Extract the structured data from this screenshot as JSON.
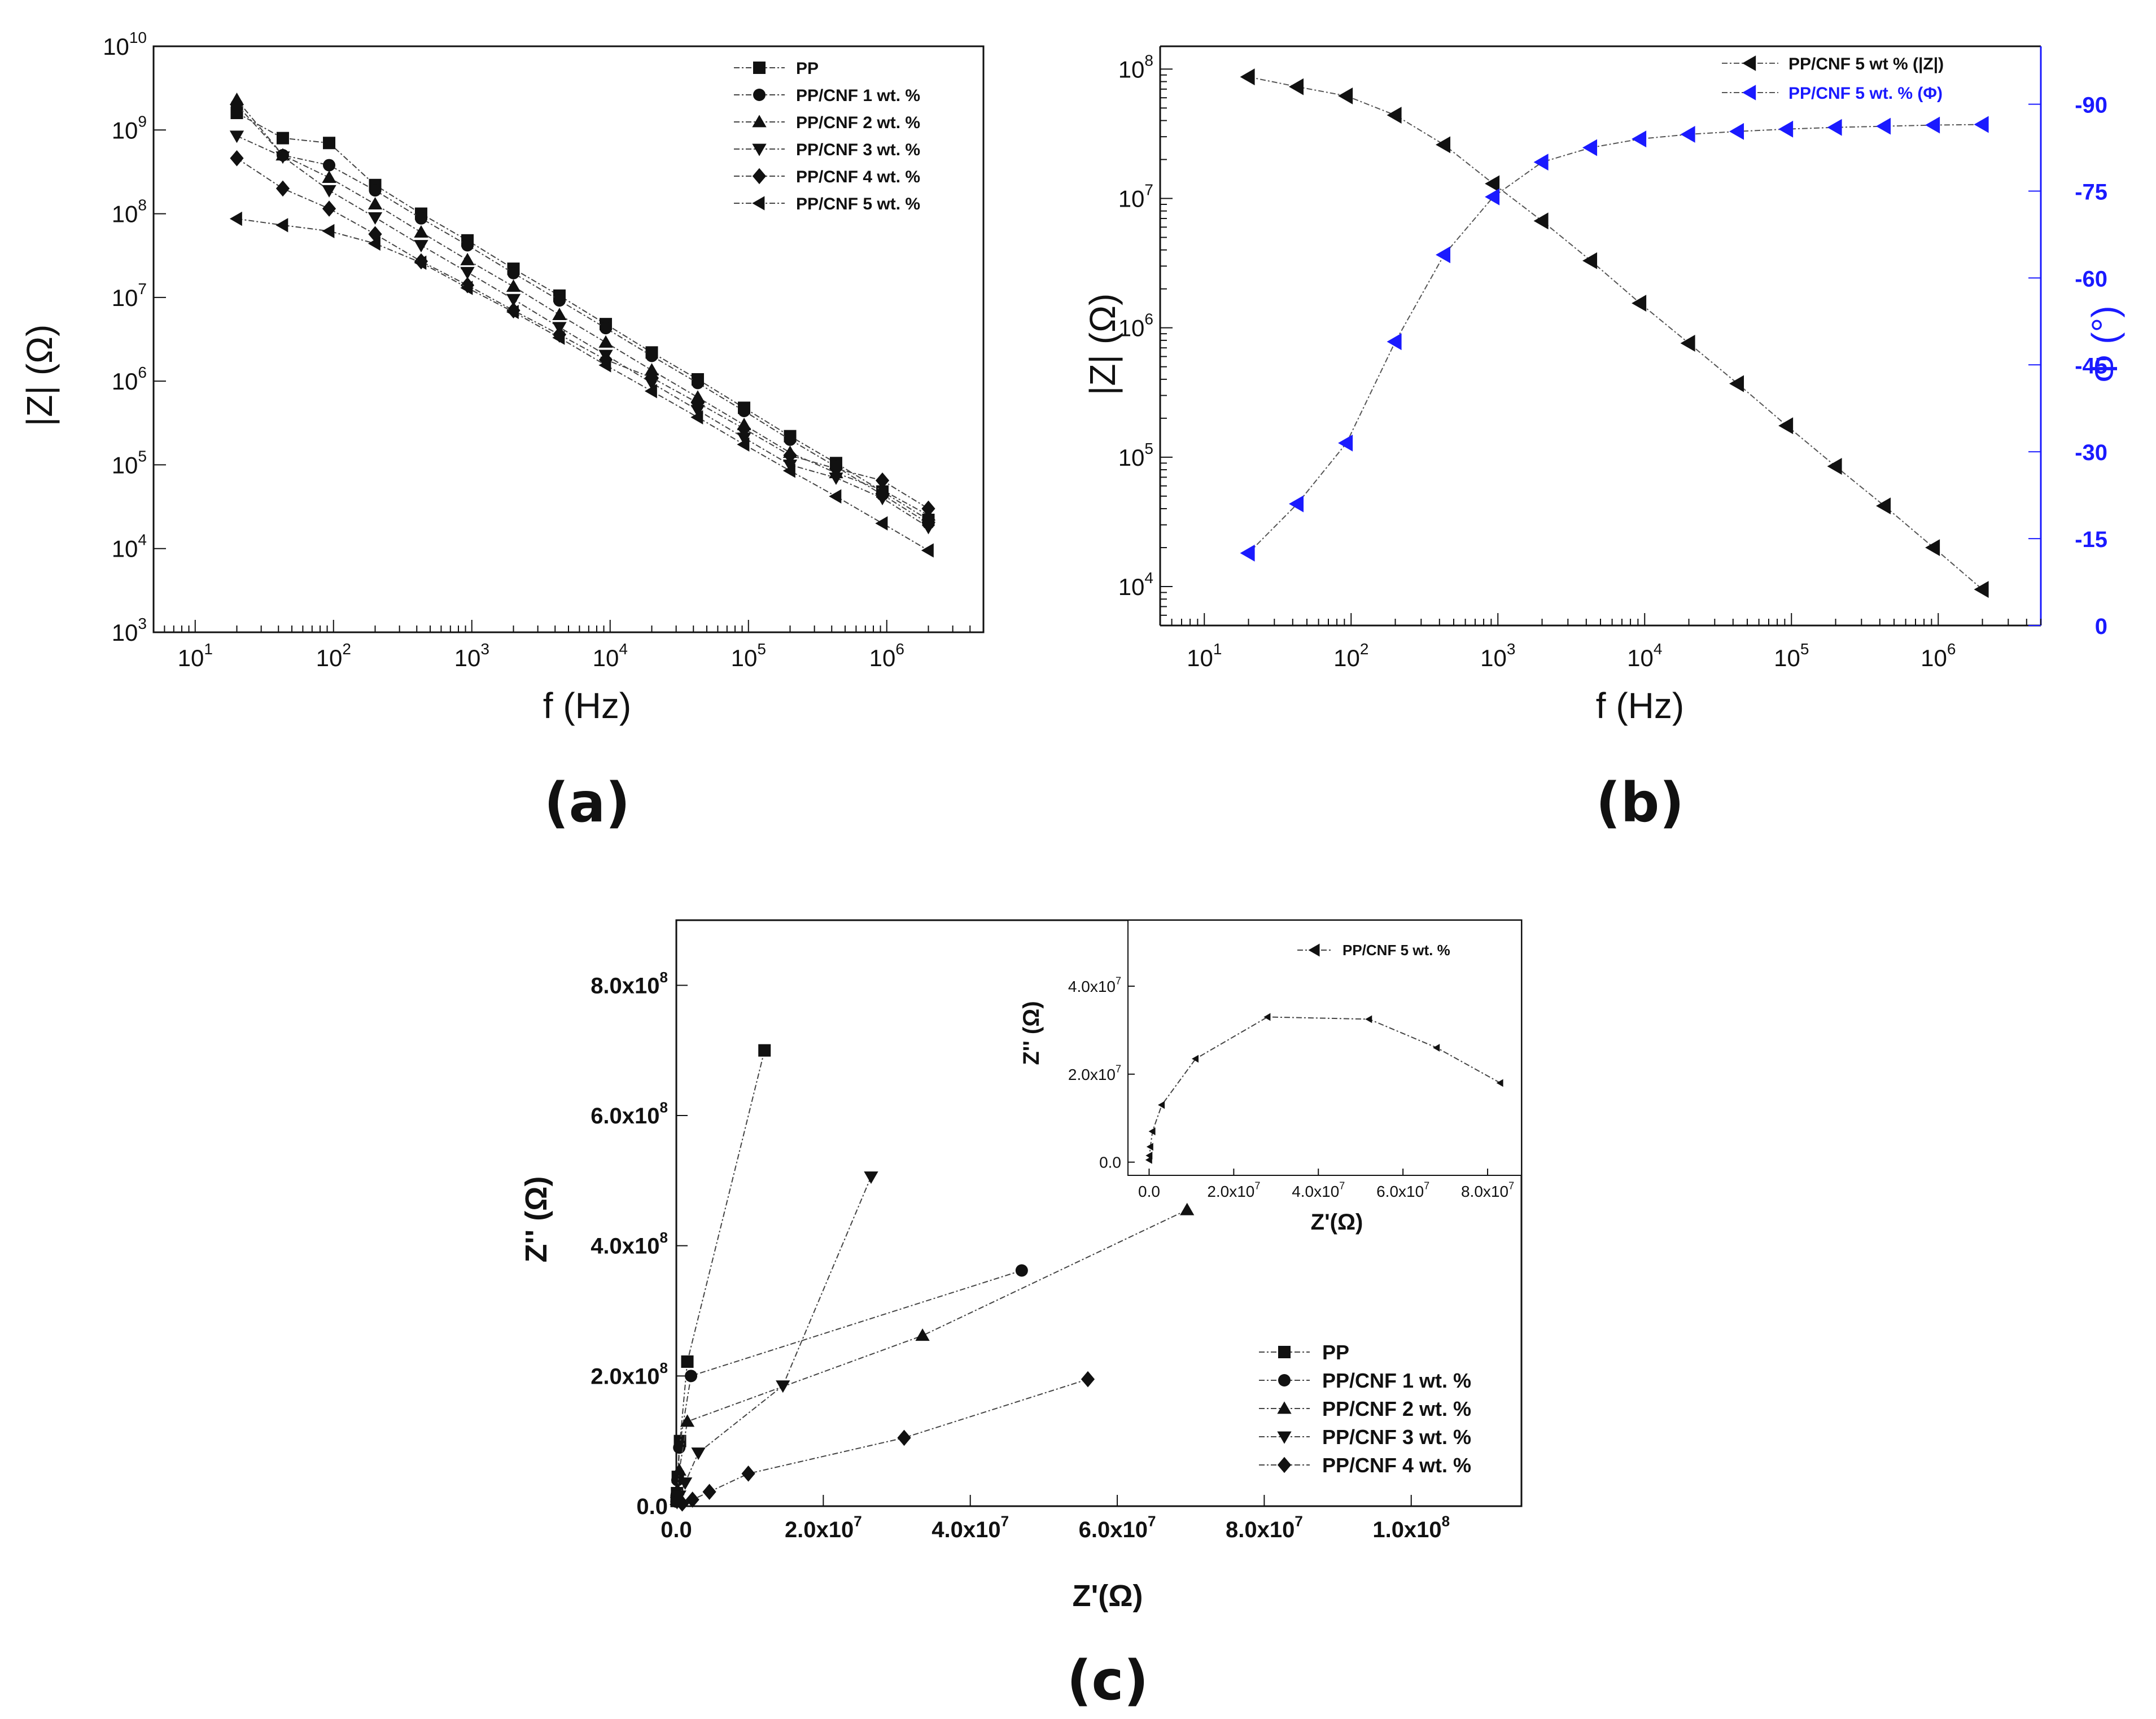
{
  "chart_data": [
    {
      "id": "a",
      "type": "line",
      "panel_label": "(a)",
      "xscale": "log",
      "yscale": "log",
      "xlim": [
        5,
        5000000
      ],
      "ylim": [
        1000,
        10000000000
      ],
      "xlabel": "f (Hz)",
      "ylabel": "|Z| (Ω)",
      "xticks": [
        {
          "v": 10,
          "base": "10",
          "exp": "1"
        },
        {
          "v": 100,
          "base": "10",
          "exp": "2"
        },
        {
          "v": 1000,
          "base": "10",
          "exp": "3"
        },
        {
          "v": 10000,
          "base": "10",
          "exp": "4"
        },
        {
          "v": 100000,
          "base": "10",
          "exp": "5"
        },
        {
          "v": 1000000,
          "base": "10",
          "exp": "6"
        }
      ],
      "yticks": [
        {
          "v": 1000,
          "base": "10",
          "exp": "3"
        },
        {
          "v": 10000,
          "base": "10",
          "exp": "4"
        },
        {
          "v": 100000,
          "base": "10",
          "exp": "5"
        },
        {
          "v": 1000000,
          "base": "10",
          "exp": "6"
        },
        {
          "v": 10000000,
          "base": "10",
          "exp": "7"
        },
        {
          "v": 100000000,
          "base": "10",
          "exp": "8"
        },
        {
          "v": 1000000000,
          "base": "10",
          "exp": "9"
        },
        {
          "v": 10000000000,
          "base": "10",
          "exp": "10"
        }
      ],
      "legend_position": "top-right",
      "x": [
        20,
        43,
        93,
        200,
        430,
        930,
        2000,
        4300,
        9300,
        20000,
        43000,
        93000,
        200000,
        430000,
        930000,
        2000000
      ],
      "series": [
        {
          "name": "PP",
          "marker": "square",
          "color": "#111111",
          "values": [
            1600000000,
            800000000,
            700000000,
            220000000,
            100000000,
            48000000,
            22000000,
            10500000,
            4800000,
            2200000,
            1050000,
            480000,
            220000,
            105000,
            48000,
            22000
          ]
        },
        {
          "name": "PP/CNF 1 wt. %",
          "marker": "circle",
          "color": "#111111",
          "values": [
            2000000000,
            500000000,
            380000000,
            190000000,
            88000000,
            42000000,
            19500000,
            9200000,
            4300000,
            2000000,
            950000,
            440000,
            200000,
            95000,
            44000,
            20000
          ]
        },
        {
          "name": "PP/CNF 2 wt. %",
          "marker": "triangle-up",
          "color": "#111111",
          "values": [
            2300000000,
            500000000,
            270000000,
            130000000,
            60000000,
            28000000,
            13500000,
            6200000,
            2900000,
            1350000,
            640000,
            300000,
            140000,
            80000,
            50000,
            25000
          ]
        },
        {
          "name": "PP/CNF 3 wt. %",
          "marker": "triangle-down",
          "color": "#111111",
          "values": [
            850000000,
            480000000,
            190000000,
            90000000,
            42000000,
            20000000,
            9500000,
            4400000,
            2050000,
            950000,
            450000,
            210000,
            100000,
            70000,
            40000,
            18000
          ]
        },
        {
          "name": "PP/CNF 4 wt. %",
          "marker": "diamond",
          "color": "#111111",
          "values": [
            460000000,
            200000000,
            115000000,
            57000000,
            27000000,
            14000000,
            7000000,
            3600000,
            1800000,
            1100000,
            550000,
            270000,
            130000,
            90000,
            65000,
            30000
          ]
        },
        {
          "name": "PP/CNF 5 wt. %",
          "marker": "triangle-left",
          "color": "#111111",
          "values": [
            87000000,
            73000000,
            62000000,
            44000000,
            26000000,
            13000000,
            6700000,
            3300000,
            1550000,
            760000,
            370000,
            175000,
            85000,
            42000,
            20000,
            9500
          ]
        }
      ]
    },
    {
      "id": "b",
      "type": "line",
      "panel_label": "(b)",
      "xscale": "log",
      "yscale": "log",
      "xlim": [
        5,
        5000000
      ],
      "ylim": [
        5000,
        150000000
      ],
      "y2lim": [
        0,
        100
      ],
      "xlabel": "f (Hz)",
      "ylabel": "|Z| (Ω)",
      "y2label": "Φ (°)",
      "xticks": [
        {
          "v": 10,
          "base": "10",
          "exp": "1"
        },
        {
          "v": 100,
          "base": "10",
          "exp": "2"
        },
        {
          "v": 1000,
          "base": "10",
          "exp": "3"
        },
        {
          "v": 10000,
          "base": "10",
          "exp": "4"
        },
        {
          "v": 100000,
          "base": "10",
          "exp": "5"
        },
        {
          "v": 1000000,
          "base": "10",
          "exp": "6"
        }
      ],
      "yticks": [
        {
          "v": 10000,
          "base": "10",
          "exp": "4"
        },
        {
          "v": 100000,
          "base": "10",
          "exp": "5"
        },
        {
          "v": 1000000,
          "base": "10",
          "exp": "6"
        },
        {
          "v": 10000000,
          "base": "10",
          "exp": "7"
        },
        {
          "v": 100000000,
          "base": "10",
          "exp": "8"
        }
      ],
      "y2ticks": [
        {
          "v": 0,
          "label": "0"
        },
        {
          "v": 15,
          "label": "-15"
        },
        {
          "v": 30,
          "label": "-30"
        },
        {
          "v": 45,
          "label": "-45"
        },
        {
          "v": 60,
          "label": "-60"
        },
        {
          "v": 75,
          "label": "-75"
        },
        {
          "v": 90,
          "label": "-90"
        }
      ],
      "legend_position": "top-right",
      "x": [
        20,
        43,
        93,
        200,
        430,
        930,
        2000,
        4300,
        9300,
        20000,
        43000,
        93000,
        200000,
        430000,
        930000,
        2000000
      ],
      "series": [
        {
          "name": "PP/CNF 5 wt % (|Z|)",
          "axis": "left",
          "marker": "triangle-left",
          "color": "#111111",
          "values": [
            87000000,
            73000000,
            62000000,
            44000000,
            26000000,
            13000000,
            6700000,
            3300000,
            1550000,
            760000,
            370000,
            175000,
            85000,
            42000,
            20000,
            9500
          ]
        },
        {
          "name": "PP/CNF 5 wt. % (Φ)",
          "axis": "right",
          "marker": "triangle-left",
          "color": "#1a1aff",
          "values": [
            12.5,
            21,
            31.5,
            49,
            64,
            74,
            80,
            82.5,
            84,
            84.8,
            85.3,
            85.7,
            86,
            86.2,
            86.4,
            86.5
          ]
        }
      ]
    },
    {
      "id": "c",
      "type": "scatter",
      "panel_label": "(c)",
      "xlim": [
        0,
        115000000
      ],
      "ylim": [
        0,
        900000000
      ],
      "xlabel": "Z'(Ω)",
      "ylabel": "Z'' (Ω)",
      "xticks": [
        {
          "v": 0,
          "label": "0.0",
          "exp": ""
        },
        {
          "v": 20000000,
          "label": "2.0x10",
          "exp": "7"
        },
        {
          "v": 40000000,
          "label": "4.0x10",
          "exp": "7"
        },
        {
          "v": 60000000,
          "label": "6.0x10",
          "exp": "7"
        },
        {
          "v": 80000000,
          "label": "8.0x10",
          "exp": "7"
        },
        {
          "v": 100000000,
          "label": "1.0x10",
          "exp": "8"
        }
      ],
      "yticks": [
        {
          "v": 0,
          "label": "0.0",
          "exp": ""
        },
        {
          "v": 200000000,
          "label": "2.0x10",
          "exp": "8"
        },
        {
          "v": 400000000,
          "label": "4.0x10",
          "exp": "8"
        },
        {
          "v": 600000000,
          "label": "6.0x10",
          "exp": "8"
        },
        {
          "v": 800000000,
          "label": "8.0x10",
          "exp": "8"
        }
      ],
      "legend_position": "bottom-right",
      "series": [
        {
          "name": "PP",
          "marker": "square",
          "color": "#111111",
          "x": [
            12000000,
            1500000,
            500000,
            200000,
            100000,
            40000
          ],
          "y": [
            700000000,
            222000000,
            100000000,
            45000000,
            20000000,
            8000000
          ]
        },
        {
          "name": "PP/CNF 1 wt. %",
          "marker": "circle",
          "color": "#111111",
          "x": [
            47000000,
            2000000,
            400000,
            150000,
            60000,
            20000
          ],
          "y": [
            362000000,
            200000000,
            90000000,
            40000000,
            18000000,
            7000000
          ]
        },
        {
          "name": "PP/CNF 2 wt. %",
          "marker": "triangle-up",
          "color": "#111111",
          "x": [
            69500000,
            33500000,
            1500000,
            400000,
            150000,
            60000
          ],
          "y": [
            455000000,
            262000000,
            130000000,
            55000000,
            25000000,
            10000000
          ]
        },
        {
          "name": "PP/CNF 3 wt. %",
          "marker": "triangle-down",
          "color": "#111111",
          "x": [
            26500000,
            14500000,
            3000000,
            1200000,
            400000,
            100000
          ],
          "y": [
            506000000,
            185000000,
            82000000,
            36000000,
            16000000,
            6000000
          ]
        },
        {
          "name": "PP/CNF 4 wt. %",
          "marker": "diamond",
          "color": "#111111",
          "x": [
            56000000,
            31000000,
            9800000,
            4500000,
            2200000,
            800000
          ],
          "y": [
            195000000,
            105000000,
            50000000,
            22000000,
            10000000,
            4000000
          ]
        }
      ],
      "inset": {
        "xlim": [
          -5000000,
          88000000
        ],
        "ylim": [
          -3000000,
          55000000
        ],
        "xlabel": "Z'(Ω)",
        "ylabel": "Z'' (Ω)",
        "xticks": [
          {
            "v": 0,
            "label": "0.0",
            "exp": ""
          },
          {
            "v": 20000000,
            "label": "2.0x10",
            "exp": "7"
          },
          {
            "v": 40000000,
            "label": "4.0x10",
            "exp": "7"
          },
          {
            "v": 60000000,
            "label": "6.0x10",
            "exp": "7"
          },
          {
            "v": 80000000,
            "label": "8.0x10",
            "exp": "7"
          }
        ],
        "yticks": [
          {
            "v": 0,
            "label": "0.0",
            "exp": ""
          },
          {
            "v": 20000000,
            "label": "2.0x10",
            "exp": "7"
          },
          {
            "v": 40000000,
            "label": "4.0x10",
            "exp": "7"
          }
        ],
        "series": [
          {
            "name": "PP/CNF 5 wt. %",
            "marker": "triangle-left",
            "color": "#111111",
            "x": [
              83000000,
              68000000,
              52000000,
              28000000,
              11000000,
              3000000,
              800000,
              300000,
              100000,
              30000
            ],
            "y": [
              18000000,
              26000000,
              32500000,
              33000000,
              23500000,
              13000000,
              7000000,
              3500000,
              1500000,
              500000
            ]
          }
        ]
      }
    }
  ]
}
